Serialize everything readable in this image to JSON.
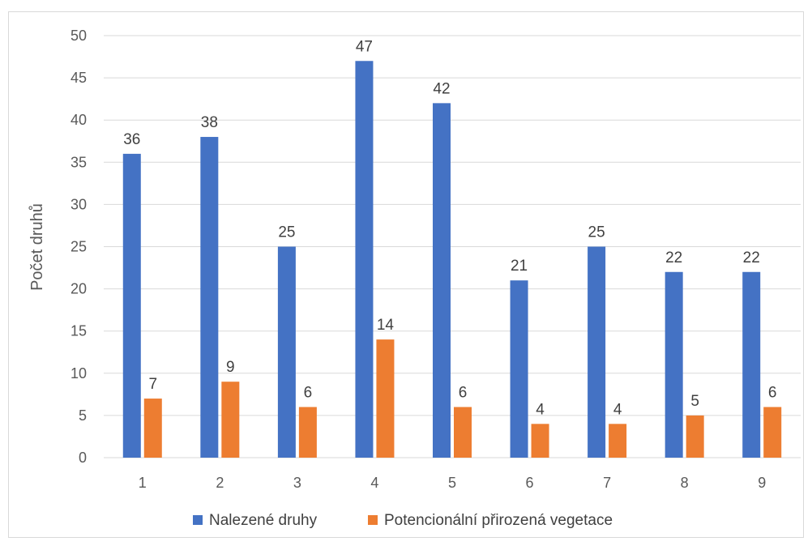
{
  "chart_data": {
    "type": "bar",
    "title": "",
    "xlabel": "",
    "ylabel": "Počet druhů",
    "categories": [
      "1",
      "2",
      "3",
      "4",
      "5",
      "6",
      "7",
      "8",
      "9"
    ],
    "series": [
      {
        "name": "Nalezené druhy",
        "color": "#4472C4",
        "values": [
          36,
          38,
          25,
          47,
          42,
          21,
          25,
          22,
          22
        ]
      },
      {
        "name": "Potencionální přirozená vegetace",
        "color": "#ED7D31",
        "values": [
          7,
          9,
          6,
          14,
          6,
          4,
          4,
          5,
          6
        ]
      }
    ],
    "ylim": [
      0,
      50
    ],
    "yticks": [
      0,
      5,
      10,
      15,
      20,
      25,
      30,
      35,
      40,
      45,
      50
    ],
    "grid": true,
    "gridline_color": "#d9d9d9",
    "legend_position": "bottom",
    "data_labels": true
  }
}
